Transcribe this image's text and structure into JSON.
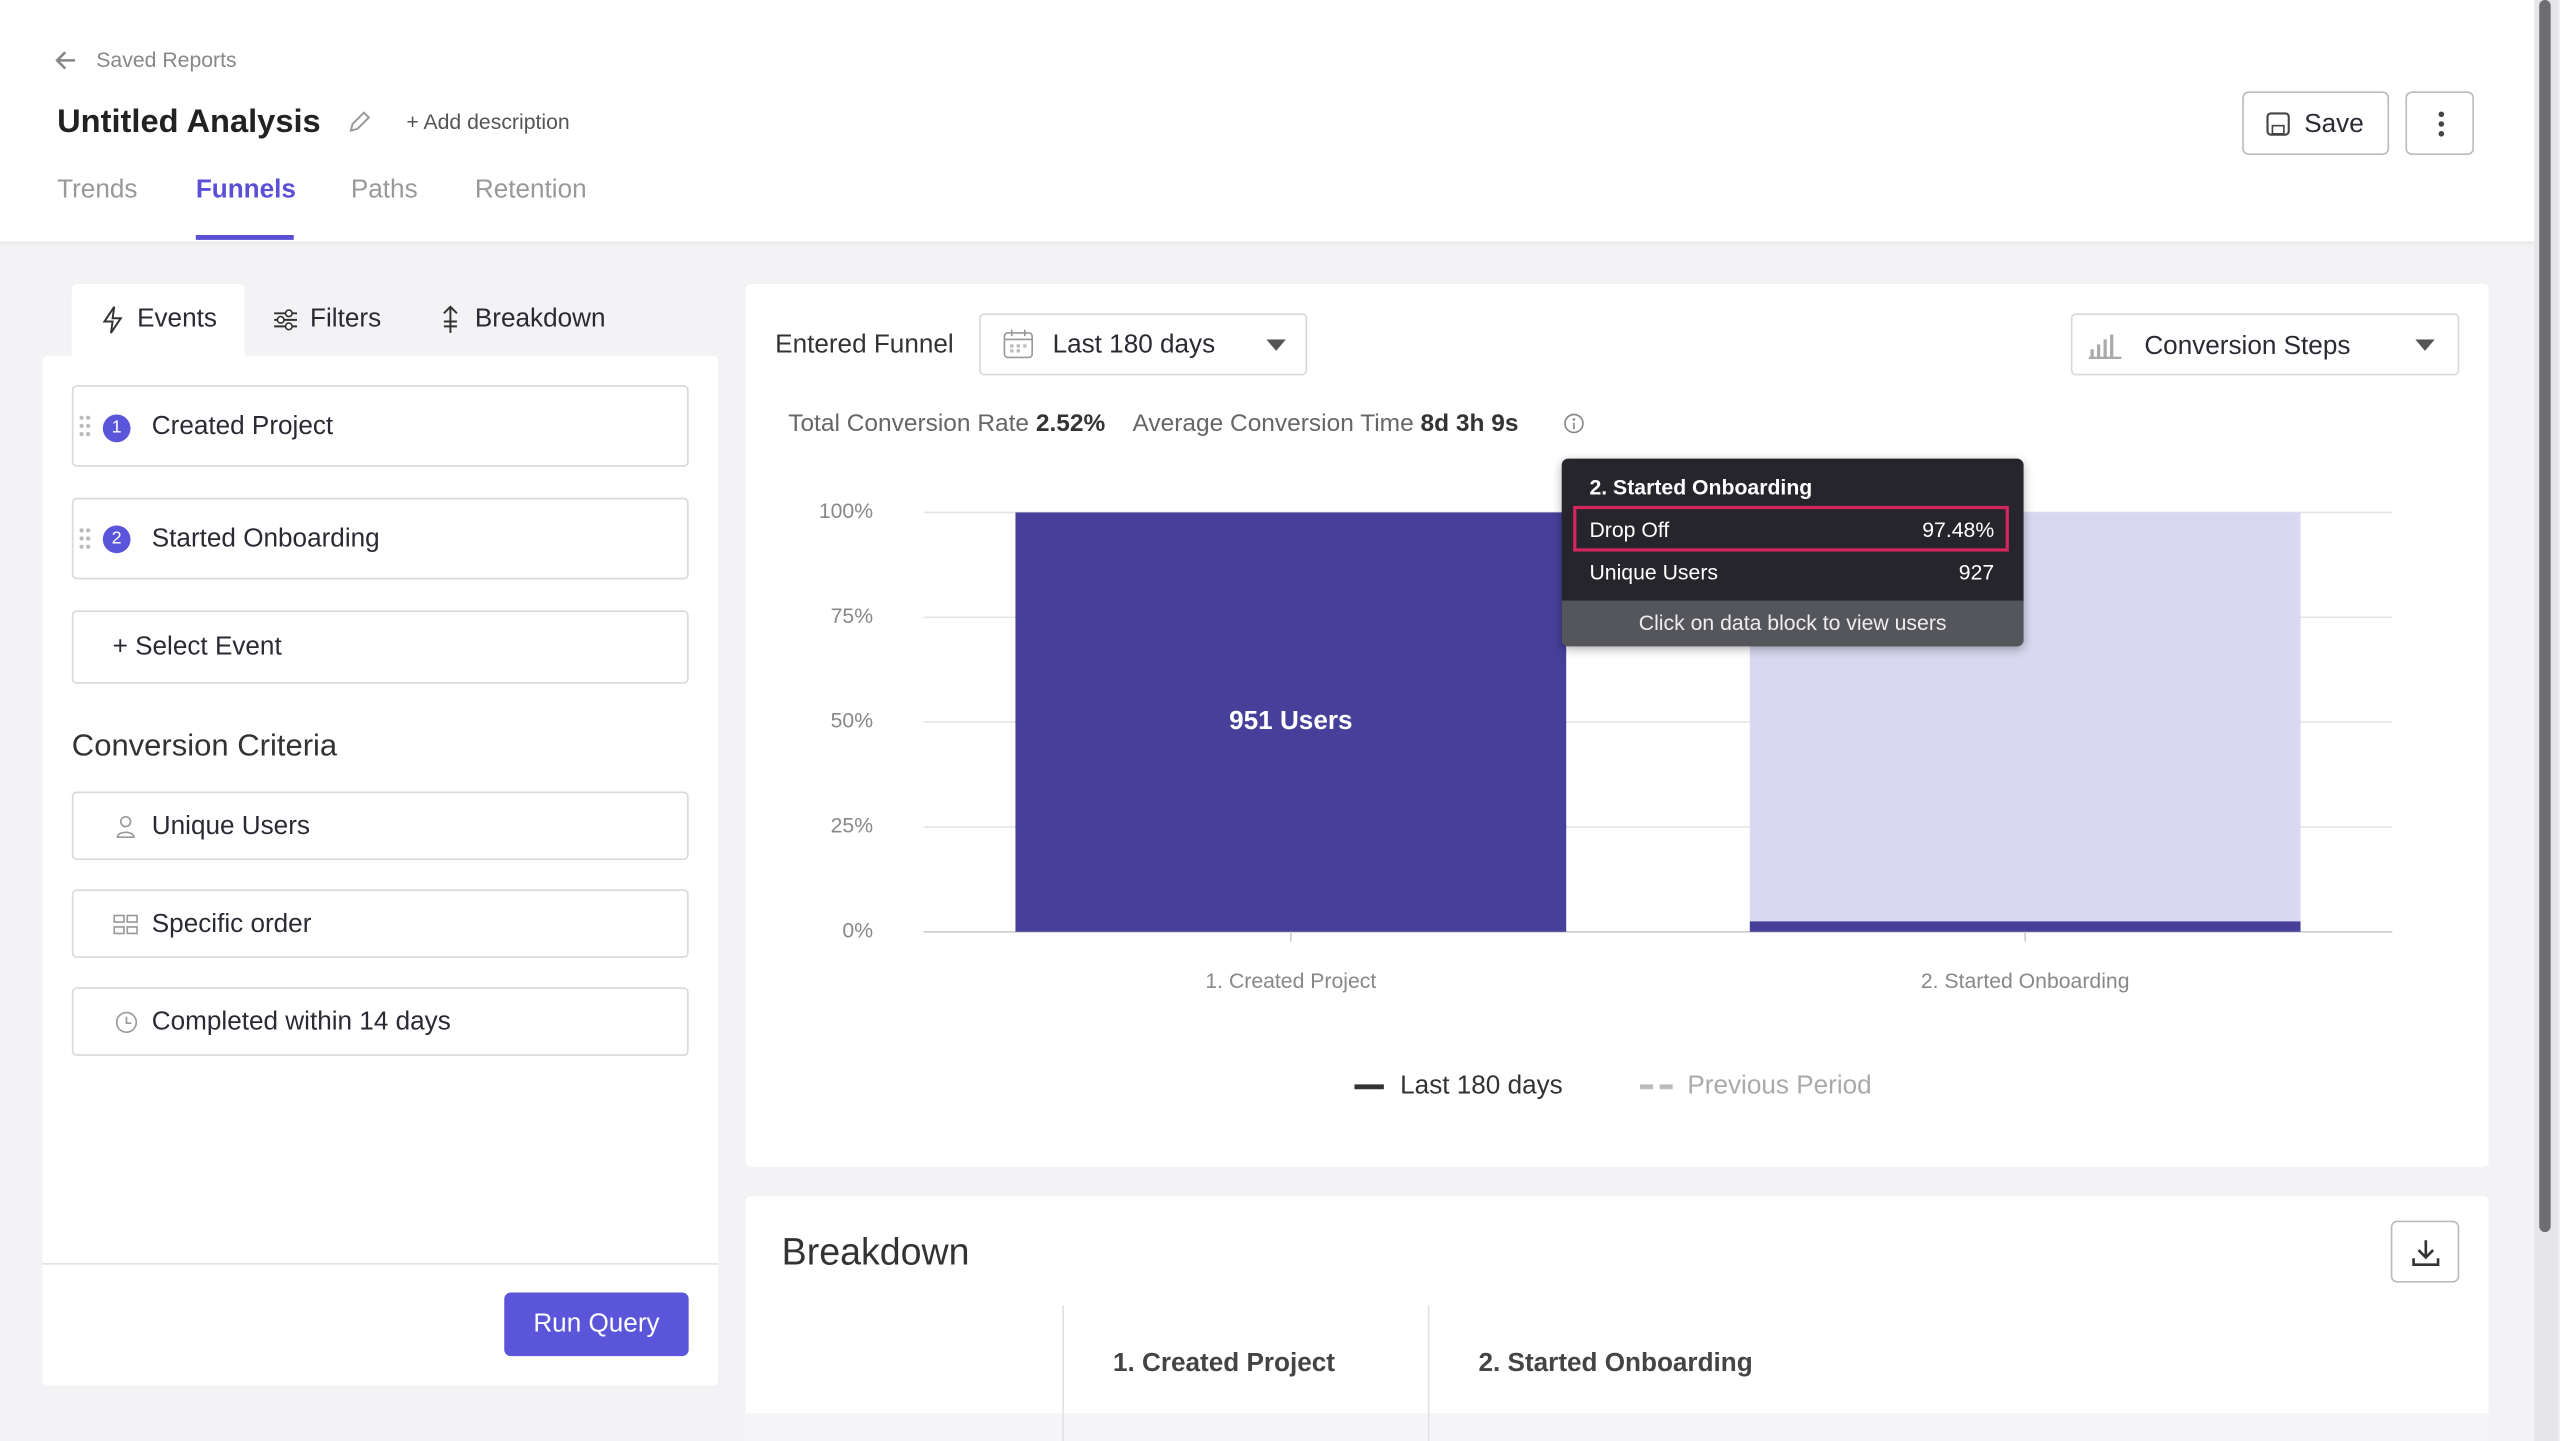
{
  "header": {
    "back_link": "Saved Reports",
    "title": "Untitled Analysis",
    "add_description": "Add description",
    "save": "Save"
  },
  "tabs": [
    "Trends",
    "Funnels",
    "Paths",
    "Retention"
  ],
  "panel_tabs": [
    "Events",
    "Filters",
    "Breakdown"
  ],
  "events": [
    {
      "number": "1",
      "name": "Created Project"
    },
    {
      "number": "2",
      "name": "Started Onboarding"
    }
  ],
  "select_event": "Select Event",
  "conversion_criteria": {
    "title": "Conversion Criteria",
    "items": [
      "Unique Users",
      "Specific order",
      "Completed within 14 days"
    ]
  },
  "run_query": "Run Query",
  "controls": {
    "entered_funnel": "Entered Funnel",
    "date_range": "Last 180 days",
    "view": "Conversion Steps"
  },
  "stats": {
    "total_conversion_label": "Total Conversion Rate",
    "total_conversion_value": "2.52%",
    "avg_time_label": "Average Conversion Time",
    "avg_time_value": "8d 3h 9s"
  },
  "chart_data": {
    "type": "bar",
    "stacked": true,
    "categories": [
      "1. Created Project",
      "2. Started Onboarding"
    ],
    "series": [
      {
        "name": "Last 180 days",
        "color": "#46409a",
        "values": [
          100,
          2.52
        ]
      },
      {
        "name": "Drop Off",
        "color": "#d9d8f0",
        "values": [
          0,
          97.48
        ],
        "in_legend": false
      }
    ],
    "bar_label": "951 Users",
    "ylim": [
      0,
      100
    ],
    "yticks": [
      {
        "value": 0,
        "label": "0%"
      },
      {
        "value": 25,
        "label": "25%"
      },
      {
        "value": 50,
        "label": "50%"
      },
      {
        "value": 75,
        "label": "75%"
      },
      {
        "value": 100,
        "label": "100%"
      }
    ],
    "grid": true,
    "legend": {
      "position": "bottom",
      "previous_period": "Previous Period"
    }
  },
  "tooltip": {
    "title": "2. Started Onboarding",
    "rows": [
      [
        "Drop Off",
        "97.48%"
      ],
      [
        "Unique Users",
        "927"
      ]
    ],
    "footer": "Click on data block to view users"
  },
  "breakdown": {
    "title": "Breakdown",
    "columns": [
      "1. Created Project",
      "2. Started Onboarding"
    ]
  }
}
